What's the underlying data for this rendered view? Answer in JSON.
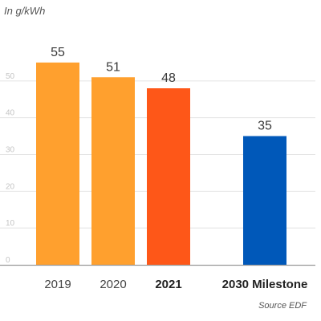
{
  "unit_label": "In g/kWh",
  "source": "Source EDF",
  "chart_data": {
    "type": "bar",
    "categories": [
      "2019",
      "2020",
      "2021",
      "2030 Milestone"
    ],
    "values": [
      55,
      51,
      48,
      35
    ],
    "bold_categories": [
      "2021",
      "2030 Milestone"
    ],
    "colors": [
      "#ffa02e",
      "#ffa02e",
      "#fe5718",
      "#0058b9"
    ],
    "yticks": [
      0,
      10,
      20,
      30,
      40,
      50
    ],
    "ylim": [
      0,
      60
    ],
    "grid": true,
    "legend": "none"
  }
}
